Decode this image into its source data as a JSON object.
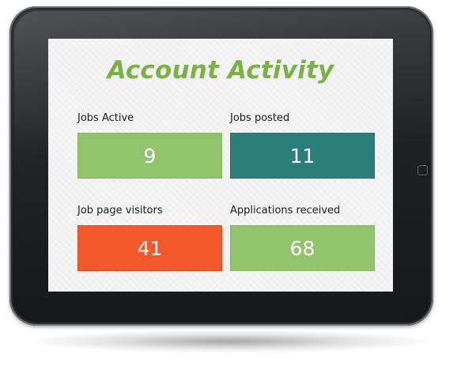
{
  "page": {
    "title": "Account Activity"
  },
  "cards": [
    {
      "label": "Jobs Active",
      "value": "9",
      "color": "#92c46d"
    },
    {
      "label": "Jobs posted",
      "value": "11",
      "color": "#2b7e7a"
    },
    {
      "label": "Job page visitors",
      "value": "41",
      "color": "#f2582b"
    },
    {
      "label": "Applications received",
      "value": "68",
      "color": "#92c46d"
    }
  ],
  "colors": {
    "title": "#7bb244",
    "screen_background": "#f5f5f5",
    "device_frame": "#1f2023"
  },
  "icons": {
    "home_button": "home-button-icon"
  }
}
